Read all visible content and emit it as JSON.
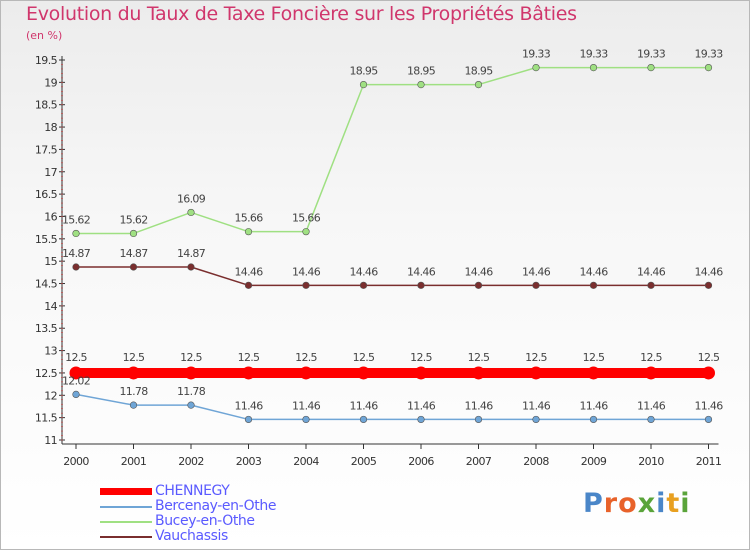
{
  "title": "Evolution du Taux de Taxe Foncière sur les Propriétés Bâties",
  "unit_label": "(en %)",
  "logo_text": "Proxiti",
  "colors": {
    "title": "#d0366c",
    "axis": "#333333",
    "legend_text": "#5a5aff"
  },
  "chart_data": {
    "type": "line",
    "title": "Evolution du Taux de Taxe Foncière sur les Propriétés Bâties",
    "ylabel": "(en %)",
    "xlabel": "",
    "x": [
      "2000",
      "2001",
      "2002",
      "2003",
      "2004",
      "2005",
      "2006",
      "2007",
      "2008",
      "2009",
      "2010",
      "2011"
    ],
    "ylim": [
      11,
      19.5
    ],
    "yticks": [
      "11",
      "11.5",
      "12",
      "12.5",
      "13",
      "13.5",
      "14",
      "14.5",
      "15",
      "15.5",
      "16",
      "16.5",
      "17",
      "17.5",
      "18",
      "18.5",
      "19",
      "19.5"
    ],
    "legend_position": "bottom-left",
    "series": [
      {
        "name": "CHENNEGY",
        "color": "#ff0000",
        "values": [
          12.5,
          12.5,
          12.5,
          12.5,
          12.5,
          12.5,
          12.5,
          12.5,
          12.5,
          12.5,
          12.5,
          12.5
        ],
        "labels": [
          "12.5",
          "12.5",
          "12.5",
          "12.5",
          "12.5",
          "12.5",
          "12.5",
          "12.5",
          "12.5",
          "12.5",
          "12.5",
          "12.5"
        ]
      },
      {
        "name": "Bercenay-en-Othe",
        "color": "#6fa5d6",
        "values": [
          12.02,
          11.78,
          11.78,
          11.46,
          11.46,
          11.46,
          11.46,
          11.46,
          11.46,
          11.46,
          11.46,
          11.46
        ],
        "labels": [
          "12.02",
          "11.78",
          "11.78",
          "11.46",
          "11.46",
          "11.46",
          "11.46",
          "11.46",
          "11.46",
          "11.46",
          "11.46",
          "11.46"
        ]
      },
      {
        "name": "Bucey-en-Othe",
        "color": "#9fe082",
        "values": [
          15.62,
          15.62,
          16.09,
          15.66,
          15.66,
          18.95,
          18.95,
          18.95,
          19.33,
          19.33,
          19.33,
          19.33
        ],
        "labels": [
          "15.62",
          "15.62",
          "16.09",
          "15.66",
          "15.66",
          "18.95",
          "18.95",
          "18.95",
          "19.33",
          "19.33",
          "19.33",
          "19.33"
        ]
      },
      {
        "name": "Vauchassis",
        "color": "#7a2e2e",
        "values": [
          14.87,
          14.87,
          14.87,
          14.46,
          14.46,
          14.46,
          14.46,
          14.46,
          14.46,
          14.46,
          14.46,
          14.46
        ],
        "labels": [
          "14.87",
          "14.87",
          "14.87",
          "14.46",
          "14.46",
          "14.46",
          "14.46",
          "14.46",
          "14.46",
          "14.46",
          "14.46",
          "14.46"
        ]
      }
    ]
  }
}
